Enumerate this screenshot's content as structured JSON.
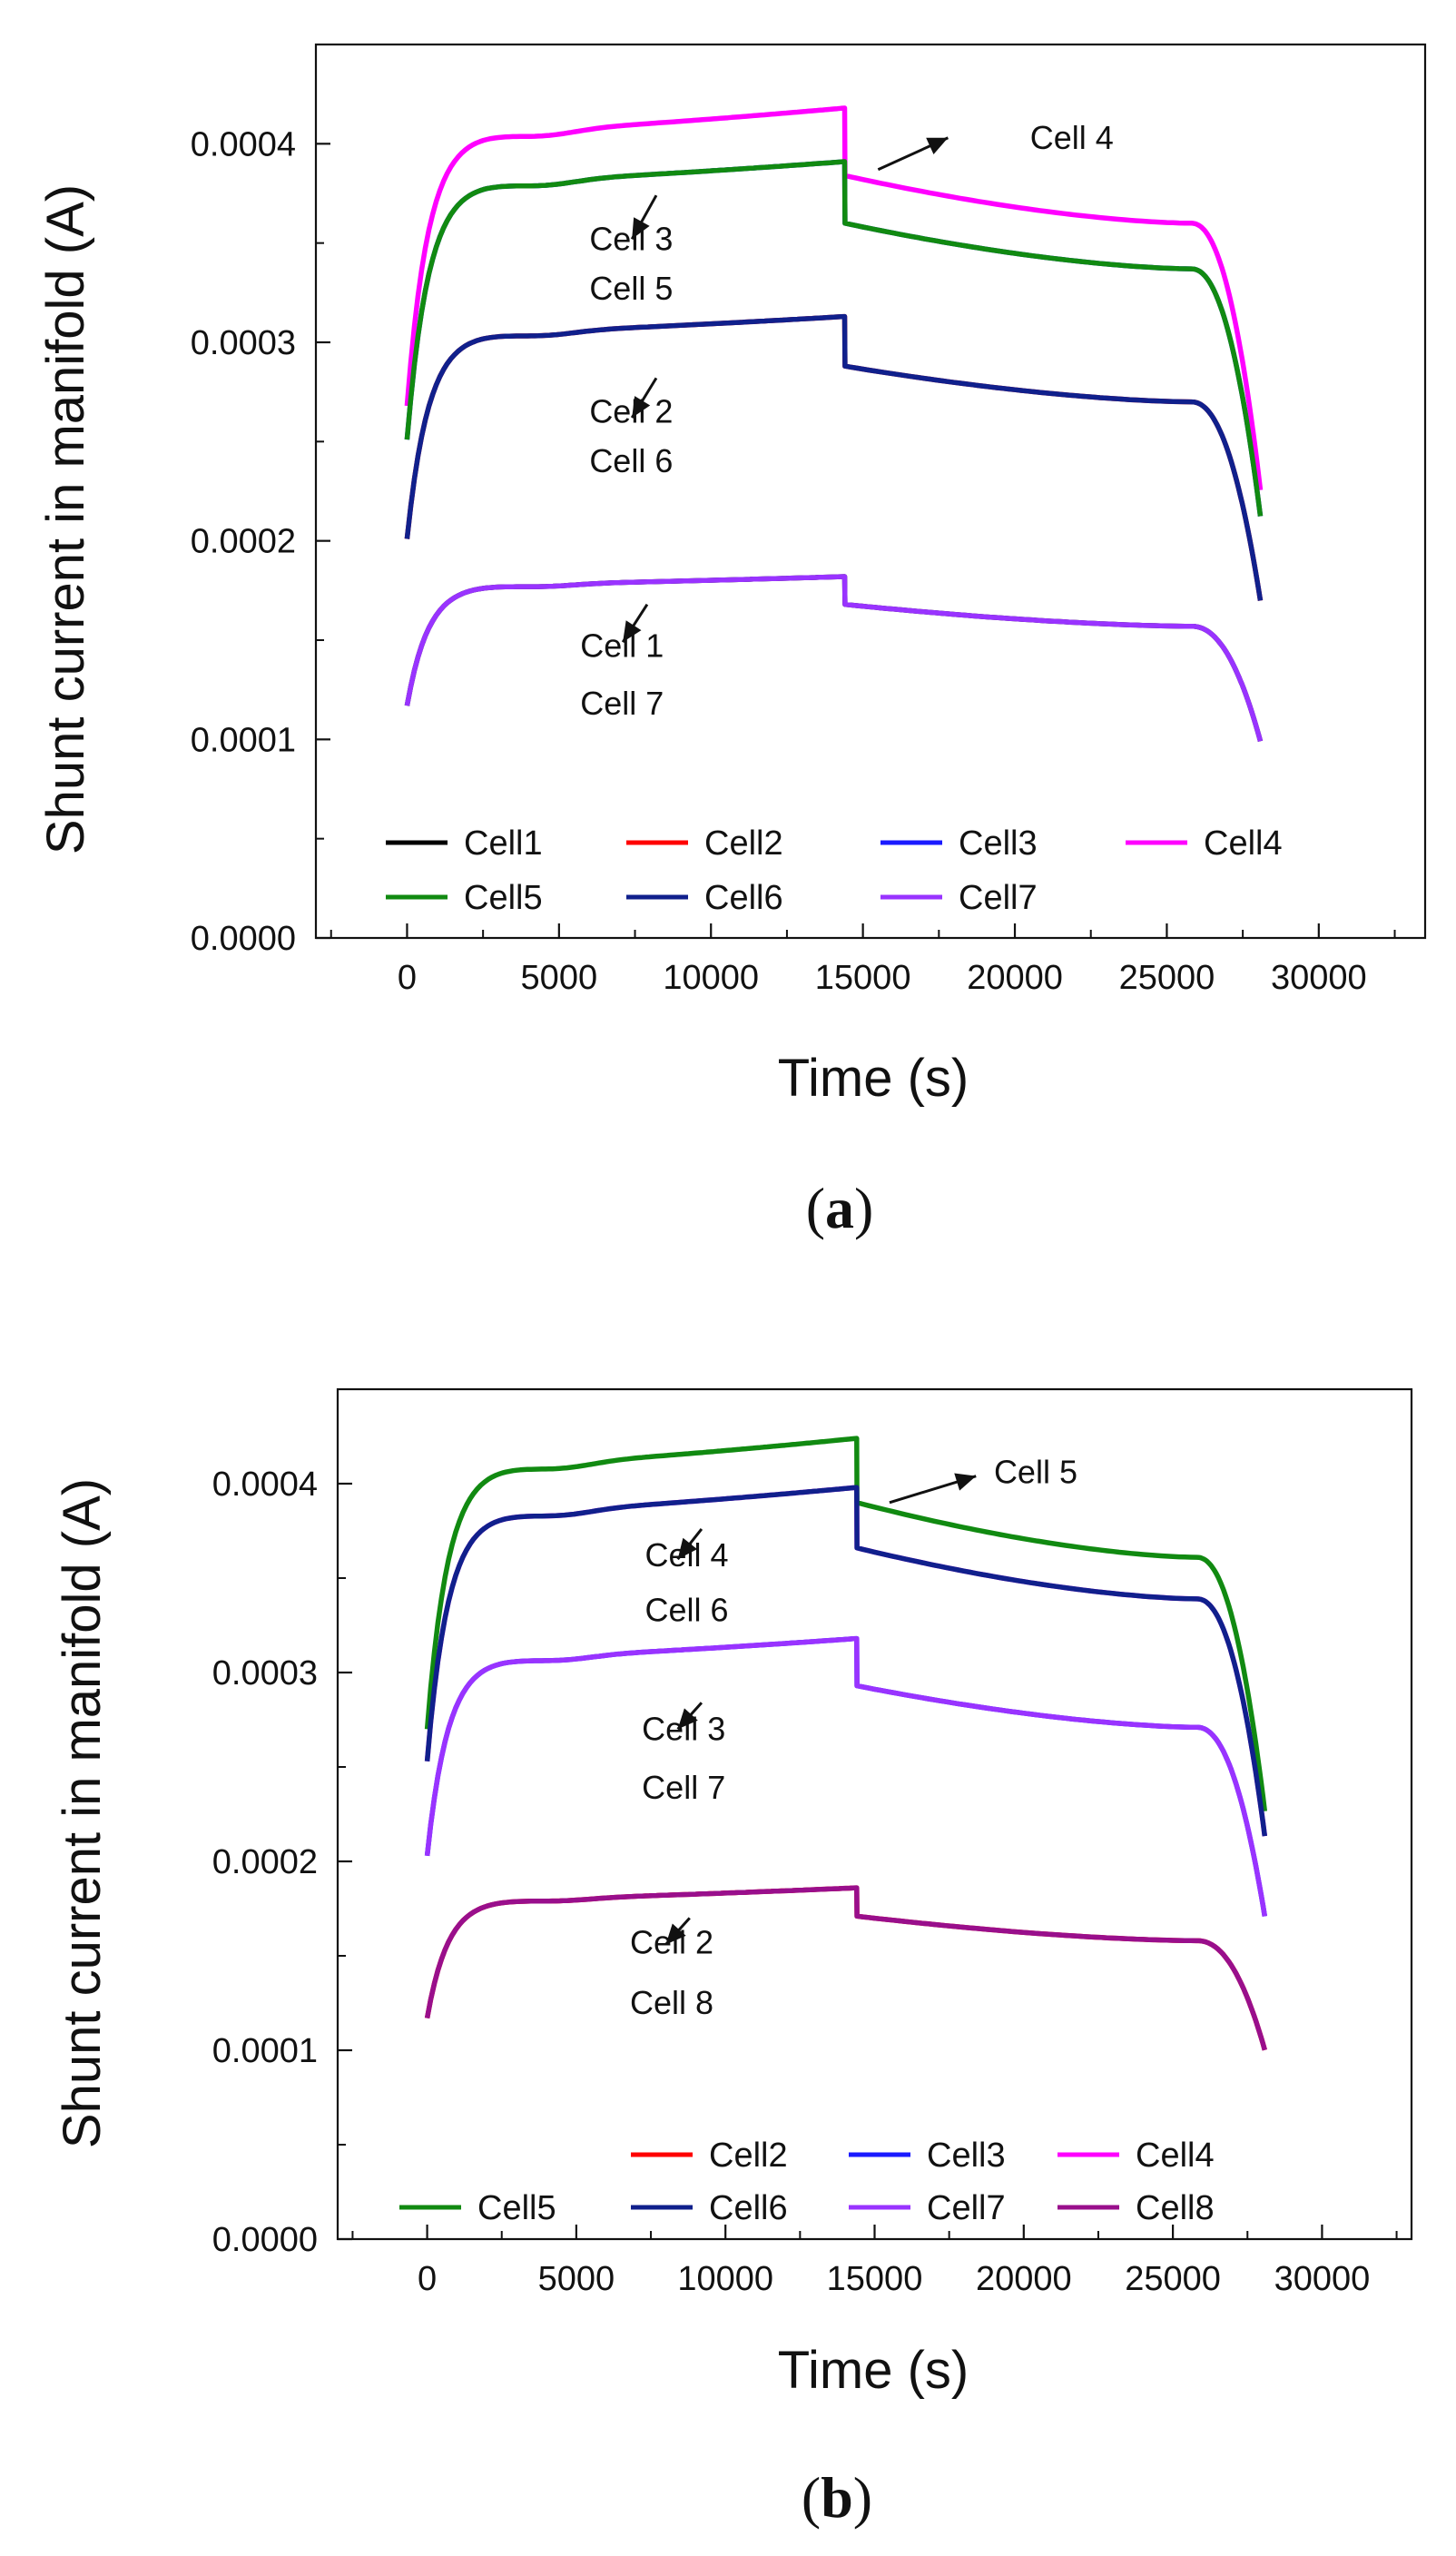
{
  "figure": {
    "panels": [
      "(a)",
      "(b)"
    ],
    "panel_letters": [
      "a",
      "b"
    ]
  },
  "chart_data": [
    {
      "type": "line",
      "panel_label": "(a)",
      "xlabel": "Time (s)",
      "ylabel": "Shunt current in manifold (A)",
      "xlim": [
        -3000,
        33500
      ],
      "ylim": [
        0,
        0.00045
      ],
      "xticks": [
        0,
        5000,
        10000,
        15000,
        20000,
        25000,
        30000
      ],
      "yticks": [
        0.0,
        0.0001,
        0.0002,
        0.0003,
        0.0004
      ],
      "ytick_labels": [
        "0.0000",
        "0.0001",
        "0.0002",
        "0.0003",
        "0.0004"
      ],
      "series": [
        {
          "name": "Cell1",
          "color": "#000000",
          "start": 0.000117,
          "plateau": 0.000178,
          "peak": 0.000182,
          "drop": 0.000168,
          "end_flat": 0.000157,
          "end": 9.8e-05,
          "visible": false
        },
        {
          "name": "Cell2",
          "color": "#ff0000",
          "start": 0.000201,
          "plateau": 0.000305,
          "peak": 0.000313,
          "drop": 0.000288,
          "end_flat": 0.00027,
          "end": 0.000168,
          "visible": false
        },
        {
          "name": "Cell3",
          "color": "#1a1aff",
          "start": 0.000251,
          "plateau": 0.000381,
          "peak": 0.000391,
          "drop": 0.00036,
          "end_flat": 0.000337,
          "end": 0.00021,
          "visible": false
        },
        {
          "name": "Cell4",
          "color": "#ff00ff",
          "start": 0.000268,
          "plateau": 0.000406,
          "peak": 0.000418,
          "drop": 0.000384,
          "end_flat": 0.00036,
          "end": 0.000223,
          "visible": true
        },
        {
          "name": "Cell5",
          "color": "#118a11",
          "start": 0.000251,
          "plateau": 0.000381,
          "peak": 0.000391,
          "drop": 0.00036,
          "end_flat": 0.000337,
          "end": 0.00021,
          "visible": true
        },
        {
          "name": "Cell6",
          "color": "#10208c",
          "start": 0.000201,
          "plateau": 0.000305,
          "peak": 0.000313,
          "drop": 0.000288,
          "end_flat": 0.00027,
          "end": 0.000168,
          "visible": true
        },
        {
          "name": "Cell7",
          "color": "#9933ff",
          "start": 0.000117,
          "plateau": 0.000178,
          "peak": 0.000182,
          "drop": 0.000168,
          "end_flat": 0.000157,
          "end": 9.8e-05,
          "visible": true
        }
      ],
      "legend_rows": [
        [
          "Cell1",
          "Cell2",
          "Cell3",
          "Cell4"
        ],
        [
          "Cell5",
          "Cell6",
          "Cell7"
        ]
      ],
      "annotations": [
        {
          "text": "Cell 4",
          "x": 20500,
          "y": 0.000403,
          "arrow_from": [
            15500,
            0.000387
          ],
          "arrow_to": [
            17800,
            0.000403
          ]
        },
        {
          "text": "Cell 3",
          "x": 6000,
          "y": 0.000352,
          "arrow_from": [
            8200,
            0.000374
          ],
          "arrow_to": [
            7400,
            0.000352
          ]
        },
        {
          "text": "Cell 5",
          "x": 6000,
          "y": 0.000327
        },
        {
          "text": "Cell 2",
          "x": 6000,
          "y": 0.000265,
          "arrow_from": [
            8200,
            0.000282
          ],
          "arrow_to": [
            7400,
            0.000262
          ]
        },
        {
          "text": "Cell 6",
          "x": 6000,
          "y": 0.00024
        },
        {
          "text": "Cell 1",
          "x": 5700,
          "y": 0.000147,
          "arrow_from": [
            7900,
            0.000168
          ],
          "arrow_to": [
            7100,
            0.000149
          ]
        },
        {
          "text": "Cell 7",
          "x": 5700,
          "y": 0.000118
        }
      ]
    },
    {
      "type": "line",
      "panel_label": "(b)",
      "xlabel": "Time (s)",
      "ylabel": "Shunt current in manifold (A)",
      "xlim": [
        -3000,
        33000
      ],
      "ylim": [
        0,
        0.00045
      ],
      "xticks": [
        0,
        5000,
        10000,
        15000,
        20000,
        25000,
        30000
      ],
      "yticks": [
        0.0,
        0.0001,
        0.0002,
        0.0003,
        0.0004
      ],
      "ytick_labels": [
        "0.0000",
        "0.0001",
        "0.0002",
        "0.0003",
        "0.0004"
      ],
      "series": [
        {
          "name": "Cell2",
          "color": "#ff0000",
          "start": 0.000117,
          "plateau": 0.00018,
          "peak": 0.000186,
          "drop": 0.000171,
          "end_flat": 0.000158,
          "end": 9.9e-05,
          "visible": false
        },
        {
          "name": "Cell3",
          "color": "#1a1aff",
          "start": 0.000203,
          "plateau": 0.000308,
          "peak": 0.000318,
          "drop": 0.000293,
          "end_flat": 0.000271,
          "end": 0.000169,
          "visible": false
        },
        {
          "name": "Cell4",
          "color": "#ff00ff",
          "start": 0.000253,
          "plateau": 0.000385,
          "peak": 0.000398,
          "drop": 0.000366,
          "end_flat": 0.000339,
          "end": 0.000211,
          "visible": false
        },
        {
          "name": "Cell5",
          "color": "#118a11",
          "start": 0.00027,
          "plateau": 0.00041,
          "peak": 0.000424,
          "drop": 0.00039,
          "end_flat": 0.000361,
          "end": 0.000224,
          "visible": true
        },
        {
          "name": "Cell6",
          "color": "#10208c",
          "start": 0.000253,
          "plateau": 0.000385,
          "peak": 0.000398,
          "drop": 0.000366,
          "end_flat": 0.000339,
          "end": 0.000211,
          "visible": true
        },
        {
          "name": "Cell7",
          "color": "#9933ff",
          "start": 0.000203,
          "plateau": 0.000308,
          "peak": 0.000318,
          "drop": 0.000293,
          "end_flat": 0.000271,
          "end": 0.000169,
          "visible": true
        },
        {
          "name": "Cell8",
          "color": "#990f8c",
          "start": 0.000117,
          "plateau": 0.00018,
          "peak": 0.000186,
          "drop": 0.000171,
          "end_flat": 0.000158,
          "end": 9.9e-05,
          "visible": true
        }
      ],
      "legend_rows": [
        [
          "Cell2",
          "Cell3",
          "Cell4"
        ],
        [
          "Cell5",
          "Cell6",
          "Cell7",
          "Cell8"
        ]
      ],
      "annotations": [
        {
          "text": "Cell 5",
          "x": 19000,
          "y": 0.000406,
          "arrow_from": [
            15500,
            0.00039
          ],
          "arrow_to": [
            18400,
            0.000404
          ]
        },
        {
          "text": "Cell 4",
          "x": 7300,
          "y": 0.000362,
          "arrow_from": [
            9200,
            0.000376
          ],
          "arrow_to": [
            8400,
            0.00036
          ]
        },
        {
          "text": "Cell 6",
          "x": 7300,
          "y": 0.000333
        },
        {
          "text": "Cell 3",
          "x": 7200,
          "y": 0.00027,
          "arrow_from": [
            9200,
            0.000284
          ],
          "arrow_to": [
            8400,
            0.00027
          ]
        },
        {
          "text": "Cell 7",
          "x": 7200,
          "y": 0.000239
        },
        {
          "text": "Cell 2",
          "x": 6800,
          "y": 0.000157,
          "arrow_from": [
            8800,
            0.00017
          ],
          "arrow_to": [
            8000,
            0.000156
          ]
        },
        {
          "text": "Cell 8",
          "x": 6800,
          "y": 0.000125
        }
      ]
    }
  ]
}
